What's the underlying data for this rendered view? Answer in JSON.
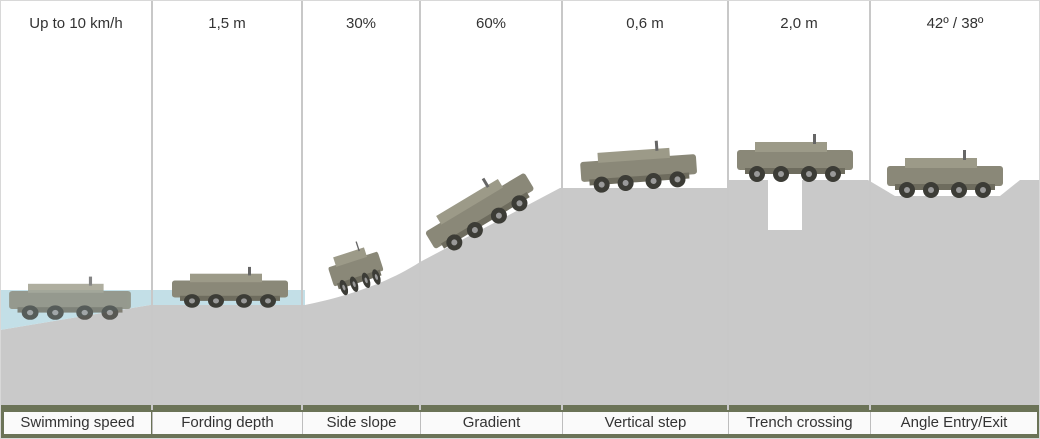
{
  "panels": [
    {
      "value": "Up to 10 km/h",
      "label": "Swimming speed"
    },
    {
      "value": "1,5 m",
      "label": "Fording depth"
    },
    {
      "value": "30%",
      "label": "Side slope"
    },
    {
      "value": "60%",
      "label": "Gradient"
    },
    {
      "value": "0,6 m",
      "label": "Vertical step"
    },
    {
      "value": "2,0 m",
      "label": "Trench crossing"
    },
    {
      "value": "42º / 38º",
      "label": "Angle Entry/Exit"
    }
  ],
  "colors": {
    "terrain": "#c9c9c9",
    "water": "#bcdbe4",
    "vehicle_body": "#8a8878",
    "vehicle_wheel": "#3c3c36",
    "panel_background": "#ffffff",
    "divider": "#c8c8c8",
    "label_text": "#333333"
  }
}
